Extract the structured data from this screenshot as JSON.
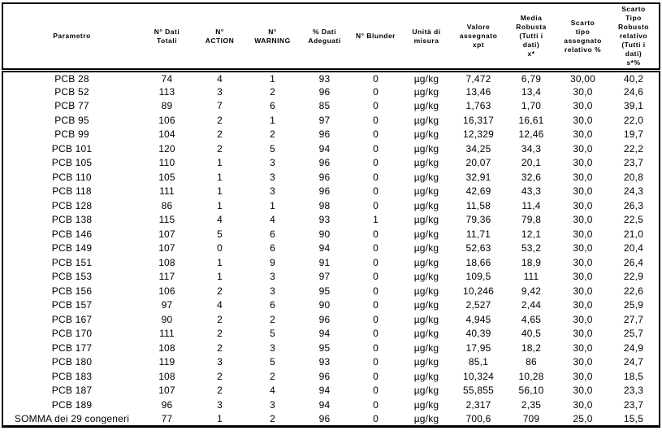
{
  "table": {
    "columns": [
      {
        "id": "parametro",
        "label": "Parametro"
      },
      {
        "id": "n-dati-totali",
        "label": "N° Dati\nTotali"
      },
      {
        "id": "n-action",
        "label": "N°\nACTION"
      },
      {
        "id": "n-warning",
        "label": "N°\nWARNING"
      },
      {
        "id": "pct-dati-adeguati",
        "label": "% Dati\nAdeguati"
      },
      {
        "id": "n-blunder",
        "label": "N° Blunder"
      },
      {
        "id": "unita-di-misura",
        "label": "Unità di\nmisura"
      },
      {
        "id": "valore-assegnato-xpt",
        "label": "Valore\nassegnato\nxpt"
      },
      {
        "id": "media-robusta",
        "label": "Media\nRobusta\n(Tutti i\ndati)\nx*"
      },
      {
        "id": "scarto-tipo-assegnato",
        "label": "Scarto\ntipo\nassegnato\nrelativo %"
      },
      {
        "id": "scarto-tipo-robusto",
        "label": "Scarto\nTipo\nRobusto\nrelativo\n(Tutti i\ndati)\ns*%"
      }
    ],
    "rows": [
      [
        "PCB 28",
        "74",
        "4",
        "1",
        "93",
        "0",
        "µg/kg",
        "7,472",
        "6,79",
        "30,00",
        "40,2"
      ],
      [
        "PCB 52",
        "113",
        "3",
        "2",
        "96",
        "0",
        "µg/kg",
        "13,46",
        "13,4",
        "30,0",
        "24,6"
      ],
      [
        "PCB 77",
        "89",
        "7",
        "6",
        "85",
        "0",
        "µg/kg",
        "1,763",
        "1,70",
        "30,0",
        "39,1"
      ],
      [
        "PCB 95",
        "106",
        "2",
        "1",
        "97",
        "0",
        "µg/kg",
        "16,317",
        "16,61",
        "30,0",
        "22,0"
      ],
      [
        "PCB 99",
        "104",
        "2",
        "2",
        "96",
        "0",
        "µg/kg",
        "12,329",
        "12,46",
        "30,0",
        "19,7"
      ],
      [
        "PCB 101",
        "120",
        "2",
        "5",
        "94",
        "0",
        "µg/kg",
        "34,25",
        "34,3",
        "30,0",
        "22,2"
      ],
      [
        "PCB 105",
        "110",
        "1",
        "3",
        "96",
        "0",
        "µg/kg",
        "20,07",
        "20,1",
        "30,0",
        "23,7"
      ],
      [
        "PCB 110",
        "105",
        "1",
        "3",
        "96",
        "0",
        "µg/kg",
        "32,91",
        "32,6",
        "30,0",
        "20,8"
      ],
      [
        "PCB 118",
        "111",
        "1",
        "3",
        "96",
        "0",
        "µg/kg",
        "42,69",
        "43,3",
        "30,0",
        "24,3"
      ],
      [
        "PCB 128",
        "86",
        "1",
        "1",
        "98",
        "0",
        "µg/kg",
        "11,58",
        "11,4",
        "30,0",
        "26,3"
      ],
      [
        "PCB 138",
        "115",
        "4",
        "4",
        "93",
        "1",
        "µg/kg",
        "79,36",
        "79,8",
        "30,0",
        "22,5"
      ],
      [
        "PCB 146",
        "107",
        "5",
        "6",
        "90",
        "0",
        "µg/kg",
        "11,71",
        "12,1",
        "30,0",
        "21,0"
      ],
      [
        "PCB 149",
        "107",
        "0",
        "6",
        "94",
        "0",
        "µg/kg",
        "52,63",
        "53,2",
        "30,0",
        "20,4"
      ],
      [
        "PCB 151",
        "108",
        "1",
        "9",
        "91",
        "0",
        "µg/kg",
        "18,66",
        "18,9",
        "30,0",
        "26,4"
      ],
      [
        "PCB 153",
        "117",
        "1",
        "3",
        "97",
        "0",
        "µg/kg",
        "109,5",
        "111",
        "30,0",
        "22,9"
      ],
      [
        "PCB 156",
        "106",
        "2",
        "3",
        "95",
        "0",
        "µg/kg",
        "10,246",
        "9,42",
        "30,0",
        "22,6"
      ],
      [
        "PCB 157",
        "97",
        "4",
        "6",
        "90",
        "0",
        "µg/kg",
        "2,527",
        "2,44",
        "30,0",
        "25,9"
      ],
      [
        "PCB 167",
        "90",
        "2",
        "2",
        "96",
        "0",
        "µg/kg",
        "4,945",
        "4,65",
        "30,0",
        "27,7"
      ],
      [
        "PCB 170",
        "111",
        "2",
        "5",
        "94",
        "0",
        "µg/kg",
        "40,39",
        "40,5",
        "30,0",
        "25,7"
      ],
      [
        "PCB 177",
        "108",
        "2",
        "3",
        "95",
        "0",
        "µg/kg",
        "17,95",
        "18,2",
        "30,0",
        "24,9"
      ],
      [
        "PCB 180",
        "119",
        "3",
        "5",
        "93",
        "0",
        "µg/kg",
        "85,1",
        "86",
        "30,0",
        "24,7"
      ],
      [
        "PCB 183",
        "108",
        "2",
        "2",
        "96",
        "0",
        "µg/kg",
        "10,324",
        "10,28",
        "30,0",
        "18,5"
      ],
      [
        "PCB 187",
        "107",
        "2",
        "4",
        "94",
        "0",
        "µg/kg",
        "55,855",
        "56,10",
        "30,0",
        "23,3"
      ],
      [
        "PCB 189",
        "96",
        "3",
        "3",
        "94",
        "0",
        "µg/kg",
        "2,317",
        "2,35",
        "30,0",
        "23,7"
      ],
      [
        "SOMMA dei 29 congeneri",
        "77",
        "1",
        "2",
        "96",
        "0",
        "µg/kg",
        "700,6",
        "709",
        "25,0",
        "15,5"
      ]
    ]
  }
}
